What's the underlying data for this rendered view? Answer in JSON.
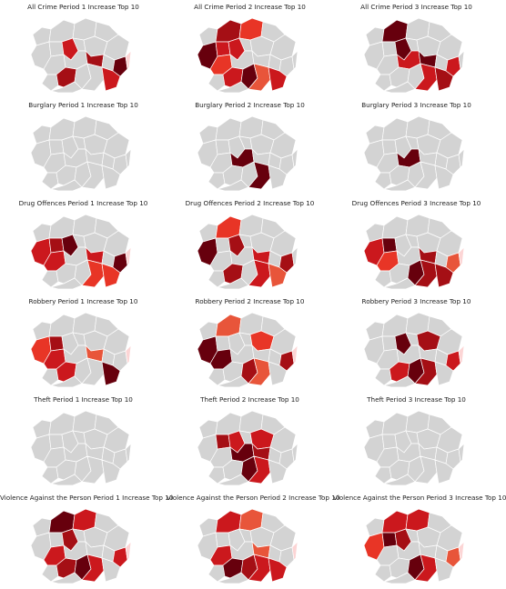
{
  "colors": {
    "base": "#d3d3d3",
    "dark": "#67000d",
    "mid": "#a50f15",
    "red": "#cb181d",
    "bright": "#e83526",
    "orange": "#e8553a",
    "light": "#f0714c",
    "halo": "#fcd5d5"
  },
  "panels": [
    {
      "title": "All Crime Period 1 Increase Top 10",
      "highlights": [
        [
          "b3",
          "mid"
        ],
        [
          "c1",
          "red"
        ],
        [
          "c2",
          "mid"
        ],
        [
          "e2",
          "dark"
        ],
        [
          "e3",
          "red"
        ],
        [
          "f2",
          "halo"
        ]
      ]
    },
    {
      "title": "All Crime Period 2 Increase Top 10",
      "highlights": [
        [
          "a1",
          "dark"
        ],
        [
          "b0",
          "mid"
        ],
        [
          "b1",
          "red"
        ],
        [
          "c0",
          "bright"
        ],
        [
          "a2",
          "bright"
        ],
        [
          "b3",
          "red"
        ],
        [
          "c1",
          "red"
        ],
        [
          "c3",
          "dark"
        ],
        [
          "e3",
          "red"
        ],
        [
          "d3",
          "orange"
        ]
      ]
    },
    {
      "title": "All Crime Period 3 Increase Top 10",
      "highlights": [
        [
          "b0",
          "dark"
        ],
        [
          "c1",
          "dark"
        ],
        [
          "c2",
          "dark"
        ],
        [
          "b2",
          "red"
        ],
        [
          "d3",
          "red"
        ],
        [
          "e2",
          "red"
        ],
        [
          "e3",
          "mid"
        ]
      ]
    },
    {
      "title": "Burglary Period 1 Increase Top 10",
      "highlights": []
    },
    {
      "title": "Burglary Period 2 Increase Top 10",
      "highlights": [
        [
          "b2",
          "dark"
        ],
        [
          "d3",
          "dark"
        ]
      ]
    },
    {
      "title": "Burglary Period 3 Increase Top 10",
      "highlights": [
        [
          "b2",
          "dark"
        ]
      ]
    },
    {
      "title": "Drug Offences Period 1 Increase Top 10",
      "highlights": [
        [
          "a1",
          "red"
        ],
        [
          "a2",
          "red"
        ],
        [
          "b1",
          "mid"
        ],
        [
          "c1",
          "dark"
        ],
        [
          "c2",
          "red"
        ],
        [
          "e2",
          "dark"
        ],
        [
          "e3",
          "bright"
        ],
        [
          "d3",
          "bright"
        ],
        [
          "f2",
          "halo"
        ]
      ]
    },
    {
      "title": "Drug Offences Period 2 Increase Top 10",
      "highlights": [
        [
          "a1",
          "dark"
        ],
        [
          "b0",
          "bright"
        ],
        [
          "c1",
          "mid"
        ],
        [
          "c2",
          "red"
        ],
        [
          "b3",
          "mid"
        ],
        [
          "e2",
          "mid"
        ],
        [
          "d3",
          "red"
        ],
        [
          "e3",
          "orange"
        ]
      ]
    },
    {
      "title": "Drug Offences Period 3 Increase Top 10",
      "highlights": [
        [
          "a1",
          "red"
        ],
        [
          "a2",
          "bright"
        ],
        [
          "b1",
          "dark"
        ],
        [
          "c2",
          "mid"
        ],
        [
          "c3",
          "dark"
        ],
        [
          "d3",
          "mid"
        ],
        [
          "e3",
          "mid"
        ],
        [
          "e2",
          "orange"
        ],
        [
          "f2",
          "halo"
        ]
      ]
    },
    {
      "title": "Robbery Period 1 Increase Top 10",
      "highlights": [
        [
          "a1",
          "bright"
        ],
        [
          "b1",
          "mid"
        ],
        [
          "a2",
          "red"
        ],
        [
          "b3",
          "red"
        ],
        [
          "c2",
          "orange"
        ],
        [
          "e3",
          "dark"
        ],
        [
          "f2",
          "halo"
        ]
      ]
    },
    {
      "title": "Robbery Period 2 Increase Top 10",
      "highlights": [
        [
          "a1",
          "dark"
        ],
        [
          "a2",
          "dark"
        ],
        [
          "b0",
          "orange"
        ],
        [
          "e1",
          "bright"
        ],
        [
          "c3",
          "mid"
        ],
        [
          "d3",
          "orange"
        ],
        [
          "e2",
          "mid"
        ],
        [
          "f2",
          "halo"
        ]
      ]
    },
    {
      "title": "Robbery Period 3 Increase Top 10",
      "highlights": [
        [
          "c1",
          "dark"
        ],
        [
          "b3",
          "red"
        ],
        [
          "c3",
          "dark"
        ],
        [
          "d3",
          "mid"
        ],
        [
          "e2",
          "red"
        ],
        [
          "e1",
          "mid"
        ],
        [
          "f2",
          "halo"
        ]
      ]
    },
    {
      "title": "Theft Period 1 Increase Top 10",
      "highlights": []
    },
    {
      "title": "Theft Period 2 Increase Top 10",
      "highlights": [
        [
          "b1",
          "mid"
        ],
        [
          "c1",
          "red"
        ],
        [
          "b2",
          "dark"
        ],
        [
          "c2",
          "mid"
        ],
        [
          "c3",
          "dark"
        ],
        [
          "e1",
          "red"
        ],
        [
          "d3",
          "red"
        ]
      ]
    },
    {
      "title": "Theft Period 3 Increase Top 10",
      "highlights": []
    },
    {
      "title": "Violence Against the Person Period 1 Increase Top 10",
      "highlights": [
        [
          "b0",
          "dark"
        ],
        [
          "c0",
          "red"
        ],
        [
          "a2",
          "red"
        ],
        [
          "b3",
          "mid"
        ],
        [
          "c1",
          "mid"
        ],
        [
          "c3",
          "dark"
        ],
        [
          "d3",
          "red"
        ],
        [
          "e2",
          "red"
        ],
        [
          "f2",
          "halo"
        ]
      ]
    },
    {
      "title": "Violence Against the Person Period 2 Increase Top 10",
      "highlights": [
        [
          "b0",
          "red"
        ],
        [
          "c0",
          "orange"
        ],
        [
          "a2",
          "red"
        ],
        [
          "b3",
          "dark"
        ],
        [
          "c3",
          "mid"
        ],
        [
          "d3",
          "red"
        ],
        [
          "e3",
          "red"
        ],
        [
          "c2",
          "orange"
        ],
        [
          "f2",
          "halo"
        ]
      ]
    },
    {
      "title": "Violence Against the Person Period 3 Increase Top 10",
      "highlights": [
        [
          "a1",
          "bright"
        ],
        [
          "b0",
          "red"
        ],
        [
          "b1",
          "dark"
        ],
        [
          "c0",
          "red"
        ],
        [
          "c1",
          "mid"
        ],
        [
          "c3",
          "dark"
        ],
        [
          "d3",
          "red"
        ],
        [
          "e2",
          "orange"
        ],
        [
          "f2",
          "halo"
        ]
      ]
    }
  ]
}
